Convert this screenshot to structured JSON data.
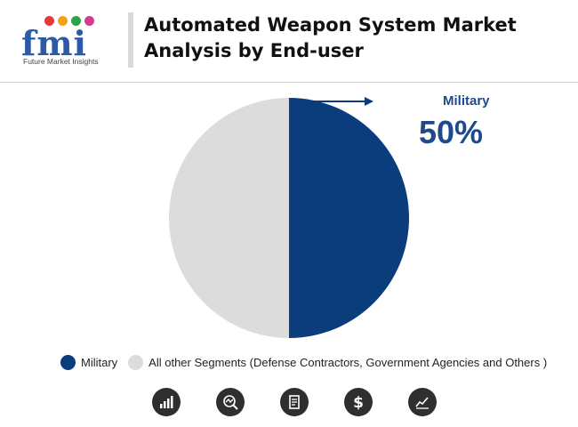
{
  "header": {
    "logo_text": "fmi",
    "logo_tagline": "Future Market Insights",
    "title": "Automated Weapon System Market Analysis by End-user"
  },
  "colors": {
    "military": "#0b3d7c",
    "others": "#dcdcdc",
    "accent_text": "#1e4a8c"
  },
  "callout": {
    "label": "Military",
    "value": "50%"
  },
  "legend": [
    {
      "label": "Military",
      "color": "#0b3d7c"
    },
    {
      "label": "All other Segments (Defense Contractors, Government Agencies and Others )",
      "color": "#dcdcdc"
    }
  ],
  "footer_icons": [
    "bar-chart-growth-icon",
    "magnifier-trend-icon",
    "document-report-icon",
    "dollar-icon",
    "line-chart-icon"
  ],
  "chart_data": {
    "type": "pie",
    "title": "Automated Weapon System Market Analysis by End-user",
    "slices": [
      {
        "label": "Military",
        "value": 50,
        "color": "#0b3d7c"
      },
      {
        "label": "All other Segments (Defense Contractors, Government Agencies and Others )",
        "value": 50,
        "color": "#dcdcdc"
      }
    ],
    "legend_position": "bottom"
  }
}
